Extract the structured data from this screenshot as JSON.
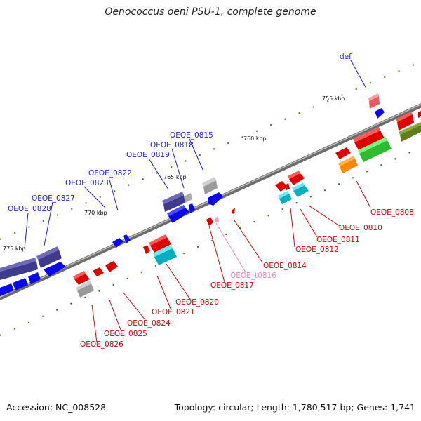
{
  "title": "Oenococcus oeni PSU-1, complete genome",
  "footer": {
    "accession": "Accession: NC_008528",
    "stats": "Topology: circular; Length: 1,780,517 bp; Genes: 1,741"
  },
  "colors": {
    "backbone": "#7f7f7f",
    "tick": "#2e7d16",
    "label_blue": "#1a1aff",
    "label_red": "#dd0000",
    "label_pink": "#ee88bb"
  },
  "scale_labels": [
    "755 kbp",
    "760 kbp",
    "765 kbp",
    "770 kbp",
    "775 kbp"
  ],
  "gene_labels": {
    "top": [
      "def",
      "OEOE_0815",
      "OEOE_0818",
      "OEOE_0819",
      "OEOE_0822",
      "OEOE_0823",
      "OEOE_0827",
      "OEOE_0828"
    ],
    "bottom": [
      "OEOE_0808",
      "OEOE_0810",
      "OEOE_0811",
      "OEOE_0812",
      "OEOE_0814",
      "OEOE_t0816",
      "OEOE_0817",
      "OEOE_0820",
      "OEOE_0821",
      "OEOE_0824",
      "OEOE_0825",
      "OEOE_0826"
    ]
  }
}
